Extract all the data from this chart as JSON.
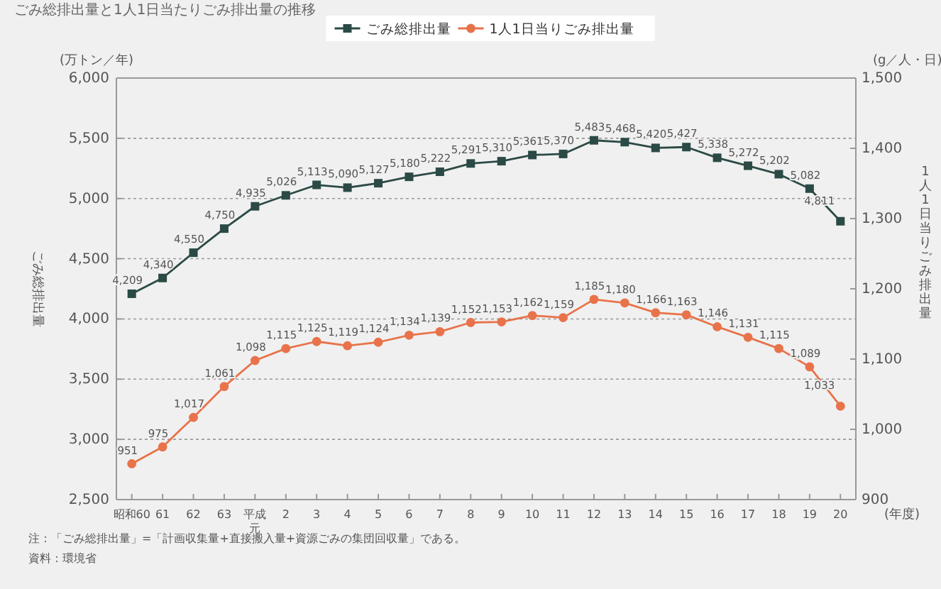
{
  "chart_data": {
    "type": "line",
    "title": "ごみ総排出量と1人1日当たりごみ排出量の推移",
    "categories": [
      "昭和60",
      "61",
      "62",
      "63",
      "平成元",
      "2",
      "3",
      "4",
      "5",
      "6",
      "7",
      "8",
      "9",
      "10",
      "11",
      "12",
      "13",
      "14",
      "15",
      "16",
      "17",
      "18",
      "19",
      "20"
    ],
    "series": [
      {
        "name": "ごみ総排出量",
        "color": "#2b4a45",
        "marker": "square",
        "values": [
          4209,
          4340,
          4550,
          4750,
          4935,
          5026,
          5113,
          5090,
          5127,
          5180,
          5222,
          5291,
          5310,
          5361,
          5370,
          5483,
          5468,
          5420,
          5427,
          5338,
          5272,
          5202,
          5082,
          4811
        ],
        "value_labels": [
          "4,209",
          "4,340",
          "4,550",
          "4,750",
          "4,935",
          "5,026",
          "5,113",
          "5,090",
          "5,127",
          "5,180",
          "5,222",
          "5,291",
          "5,310",
          "5,361",
          "5,370",
          "5,483",
          "5,468",
          "5,420",
          "5,427",
          "5,338",
          "5,272",
          "5,202",
          "5,082",
          "4,811"
        ]
      },
      {
        "name": "1人1日当りごみ排出量",
        "color": "#e8734a",
        "marker": "circle",
        "axis": "y2",
        "values": [
          951,
          975,
          1017,
          1061,
          1098,
          1115,
          1125,
          1119,
          1124,
          1134,
          1139,
          1152,
          1153,
          1162,
          1159,
          1185,
          1180,
          1166,
          1163,
          1146,
          1131,
          1115,
          1089,
          1033
        ],
        "value_labels": [
          "951",
          "975",
          "1,017",
          "1,061",
          "1,098",
          "1,115",
          "1,125",
          "1,119",
          "1,124",
          "1,134",
          "1,139",
          "1,152",
          "1,153",
          "1,162",
          "1,159",
          "1,185",
          "1,180",
          "1,166",
          "1,163",
          "1,146",
          "1,131",
          "1,115",
          "1,089",
          "1,033"
        ]
      }
    ],
    "ylabel": "ごみ総排出量",
    "y2label": "1人1日当りごみ排出量",
    "ylim": [
      2500,
      6000
    ],
    "yticks": [
      {
        "value": 2500,
        "label": "2,500"
      },
      {
        "value": 3000,
        "label": "3,000"
      },
      {
        "value": 3500,
        "label": "3,500"
      },
      {
        "value": 4000,
        "label": "4,000"
      },
      {
        "value": 4500,
        "label": "4,500"
      },
      {
        "value": 5000,
        "label": "5,000"
      },
      {
        "value": 5500,
        "label": "5,500"
      },
      {
        "value": 6000,
        "label": "6,000"
      }
    ],
    "y2lim": [
      900,
      1500
    ],
    "y2ticks": [
      900,
      {
        "value": 1000,
        "label": "1,000"
      },
      {
        "value": 1100,
        "label": "1,100"
      },
      {
        "value": 1200,
        "label": "1,200"
      },
      {
        "value": 1300,
        "label": "1,300"
      },
      {
        "value": 1400,
        "label": "1,400"
      },
      {
        "value": 1500,
        "label": "1,500"
      }
    ],
    "grid": "y",
    "legend": "top",
    "annotations": [
      "(万トン／年)",
      "(g／人・日)",
      "(年度)",
      "注：「ごみ総排出量」=「計画収集量+直接搬入量+資源ごみの集団回収量」である。",
      "資料：環境省"
    ]
  }
}
